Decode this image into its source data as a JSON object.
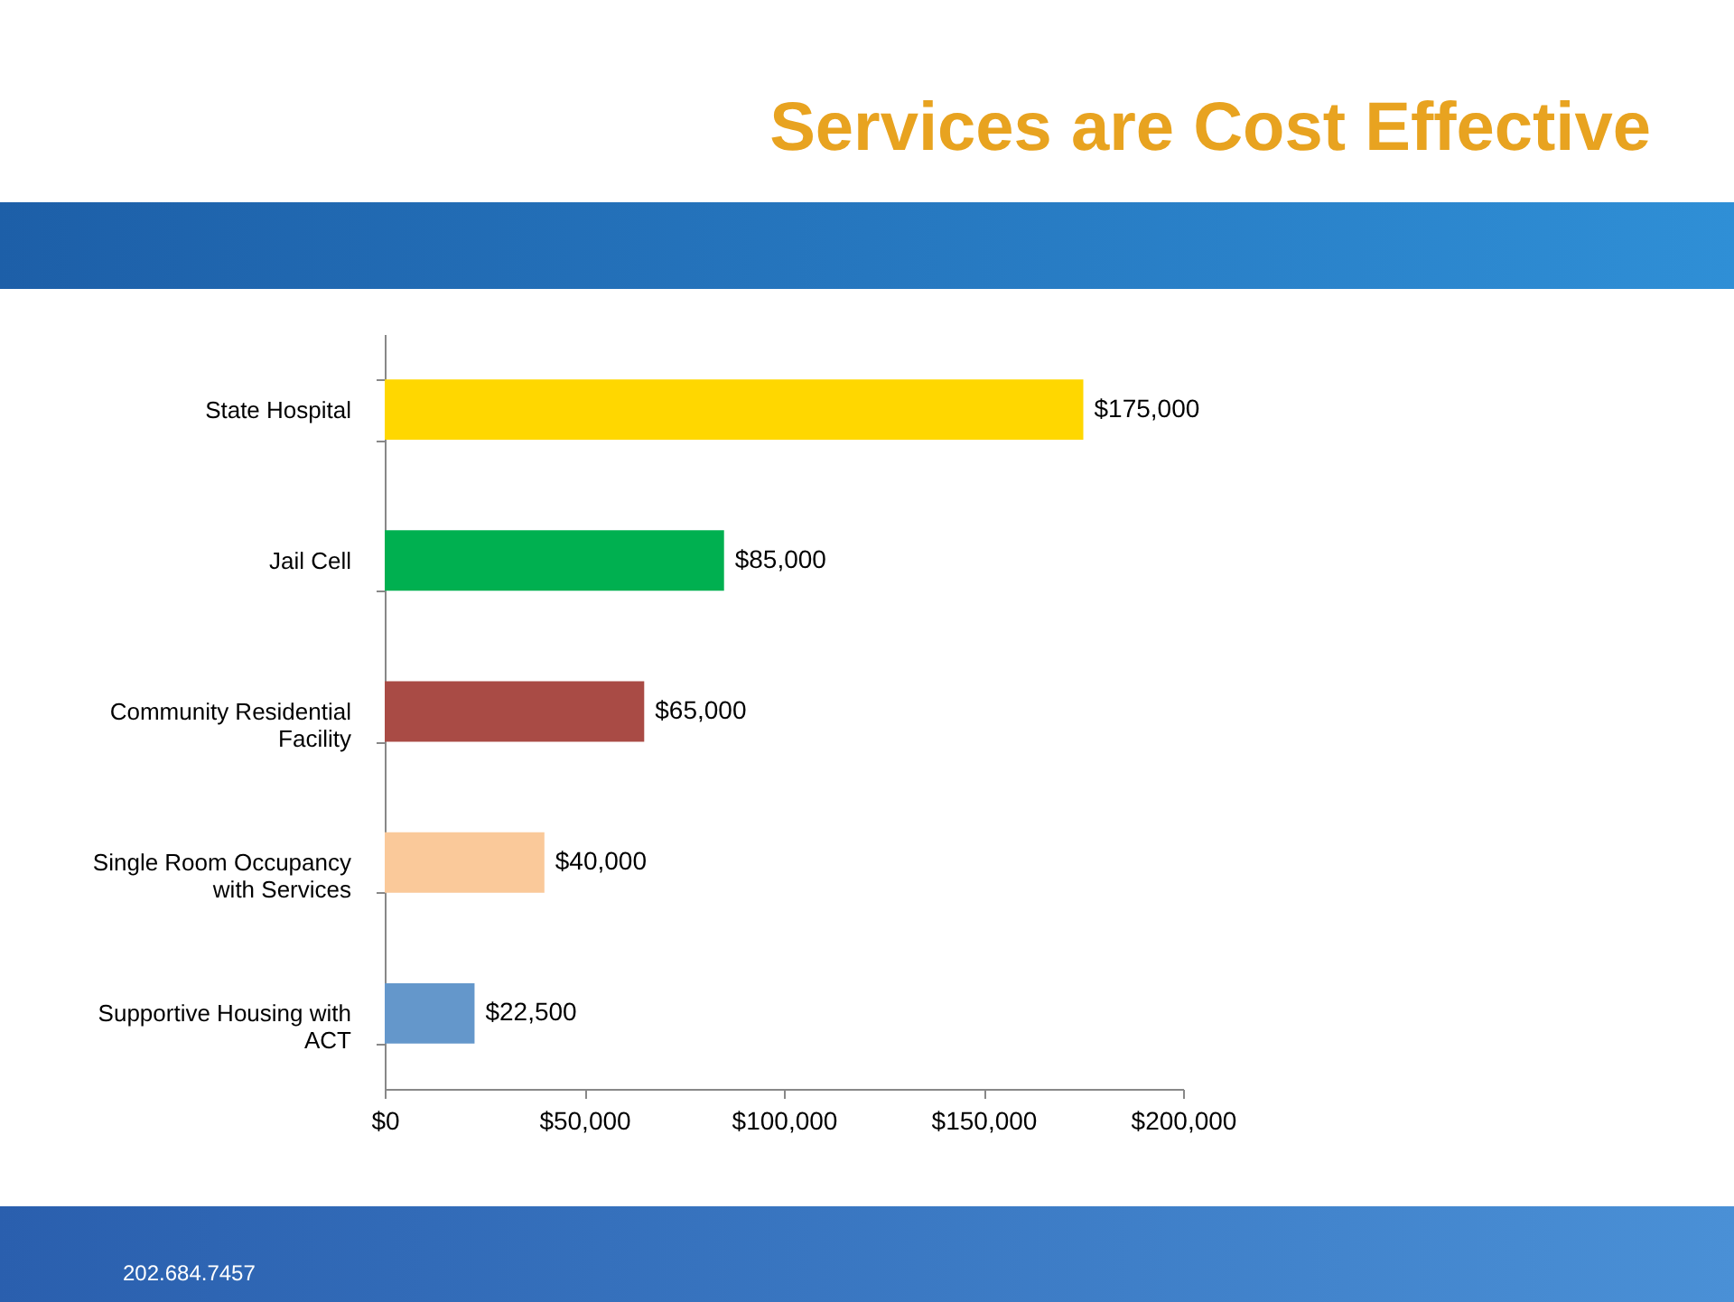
{
  "chart_data": {
    "type": "bar",
    "orientation": "horizontal",
    "title": "Services are Cost Effective",
    "categories": [
      "State Hospital",
      "Jail Cell",
      "Community Residential Facility",
      "Single Room Occupancy with Services",
      "Supportive Housing with ACT"
    ],
    "values": [
      175000,
      85000,
      65000,
      40000,
      22500
    ],
    "colors": [
      "#ffd700",
      "#00b050",
      "#a94b45",
      "#fac99a",
      "#6497cb"
    ],
    "value_labels": [
      "$175,000",
      "$85,000",
      "$65,000",
      "$40,000",
      "$22,500"
    ],
    "xlim": [
      0,
      200000
    ],
    "xticks": [
      {
        "value": 0,
        "label": "$0"
      },
      {
        "value": 50000,
        "label": "$50,000"
      },
      {
        "value": 100000,
        "label": "$100,000"
      },
      {
        "value": 150000,
        "label": "$150,000"
      },
      {
        "value": 200000,
        "label": "$200,000"
      }
    ],
    "grid": false,
    "legend": false,
    "annotations": [
      "202.684.7457"
    ]
  }
}
